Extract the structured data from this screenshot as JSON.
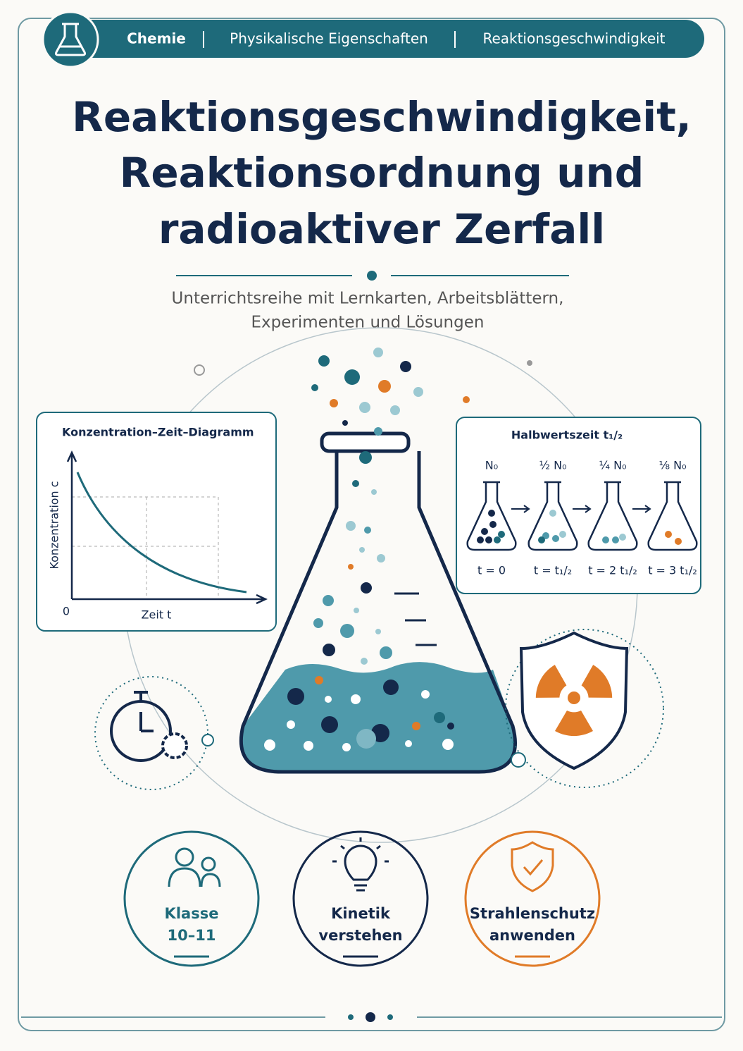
{
  "header": {
    "breadcrumb": [
      "Chemie",
      "Physikalische Eigenschaften",
      "Reaktionsgeschwindigkeit"
    ]
  },
  "title": [
    "Reaktionsgeschwindigkeit,",
    "Reaktionsordnung und",
    "radioaktiver Zerfall"
  ],
  "subtitle": [
    "Unterrichtsreihe mit Lernkarten, Arbeitsblättern,",
    "Experimenten und Lösungen"
  ],
  "concentration_panel": {
    "title": "Konzentration–Zeit–Diagramm",
    "y_label": "Konzentration c",
    "x_label": "Zeit t",
    "origin": "0"
  },
  "halflife_panel": {
    "title": "Halbwertszeit t₁/₂",
    "stages": [
      {
        "amount": "N₀",
        "time": "t = 0"
      },
      {
        "amount": "½ N₀",
        "time": "t = t₁/₂"
      },
      {
        "amount": "¼ N₀",
        "time": "t = 2 t₁/₂"
      },
      {
        "amount": "⅛ N₀",
        "time": "t = 3 t₁/₂"
      }
    ]
  },
  "badges": [
    {
      "lines": [
        "Klasse",
        "10–11"
      ]
    },
    {
      "lines": [
        "Kinetik",
        "verstehen"
      ]
    },
    {
      "lines": [
        "Strahlenschutz",
        "anwenden"
      ]
    }
  ]
}
